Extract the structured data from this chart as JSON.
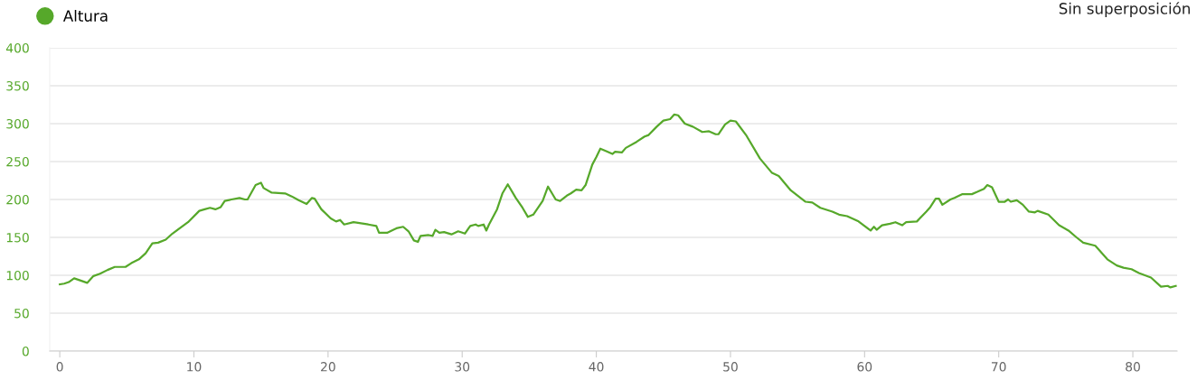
{
  "chart_data": {
    "type": "line",
    "x": [
      0,
      0.33,
      0.67,
      1.07,
      1.56,
      2.04,
      2.51,
      3.0,
      3.56,
      4.1,
      4.9,
      5.33,
      5.9,
      6.4,
      6.9,
      7.33,
      7.9,
      8.4,
      9.56,
      10.4,
      10.8,
      11.2,
      11.6,
      12.0,
      12.3,
      12.8,
      13.4,
      13.8,
      14.0,
      14.6,
      15.0,
      15.2,
      15.8,
      16.8,
      17.3,
      17.8,
      18.4,
      18.8,
      19.0,
      19.5,
      20.2,
      20.6,
      20.9,
      21.2,
      21.9,
      23.0,
      23.6,
      23.8,
      24.4,
      25.1,
      25.6,
      26.0,
      26.4,
      26.7,
      26.9,
      27.5,
      27.8,
      28.0,
      28.3,
      28.65,
      29.2,
      29.7,
      30.2,
      30.6,
      31.0,
      31.2,
      31.6,
      31.8,
      32.0,
      32.6,
      33.0,
      33.4,
      34.0,
      34.5,
      34.9,
      35.3,
      36.0,
      36.4,
      36.97,
      37.3,
      37.8,
      38.1,
      38.5,
      38.9,
      39.2,
      39.7,
      40.0,
      40.3,
      40.7,
      41.2,
      41.4,
      41.9,
      42.2,
      43.0,
      43.6,
      43.9,
      44.5,
      45.0,
      45.5,
      45.8,
      46.1,
      46.6,
      47.2,
      47.9,
      48.4,
      48.9,
      49.1,
      49.6,
      50.0,
      50.4,
      51.2,
      52.2,
      53.1,
      53.6,
      54.5,
      55.6,
      56.1,
      56.7,
      57.6,
      58.1,
      58.7,
      59.55,
      60.45,
      60.7,
      60.9,
      61.3,
      61.9,
      62.3,
      62.8,
      63.1,
      63.9,
      64.6,
      64.9,
      65.3,
      65.55,
      65.8,
      66.4,
      66.7,
      67.3,
      68.0,
      68.4,
      68.9,
      69.15,
      69.5,
      70.0,
      70.45,
      70.7,
      70.9,
      71.35,
      71.8,
      72.25,
      72.7,
      72.9,
      73.7,
      74.5,
      75.2,
      75.8,
      76.3,
      77.2,
      78.1,
      78.8,
      79.3,
      79.9,
      80.45,
      81.35,
      82.1,
      82.6,
      82.8,
      83.2
    ],
    "series": [
      {
        "name": "Altura",
        "color": "#56a82a",
        "values": [
          88,
          89,
          91,
          96,
          93,
          90,
          99,
          102,
          107,
          111,
          111,
          116,
          121,
          129,
          142,
          143,
          147,
          155,
          170,
          185,
          187,
          189,
          187,
          190,
          198,
          200,
          202,
          200,
          200,
          219,
          222,
          215,
          209,
          208,
          204,
          199,
          194,
          202,
          201,
          187,
          175,
          171,
          173,
          167,
          170,
          167,
          165,
          156,
          156,
          162,
          164,
          158,
          146,
          144,
          152,
          153,
          152,
          160,
          156,
          157,
          154,
          158,
          155,
          165,
          167,
          165,
          167,
          159,
          167,
          187,
          208,
          220,
          202,
          189,
          177,
          180,
          198,
          217,
          200,
          198,
          205,
          208,
          213,
          212,
          219,
          246,
          256,
          267,
          264,
          260,
          263,
          262,
          268,
          276,
          283,
          285,
          296,
          304,
          306,
          312,
          311,
          300,
          296,
          289,
          290,
          286,
          286,
          299,
          304,
          303,
          284,
          254,
          235,
          231,
          212,
          197,
          196,
          189,
          184,
          180,
          178,
          171,
          159,
          164,
          160,
          166,
          168,
          170,
          166,
          170,
          171,
          184,
          190,
          201,
          201,
          193,
          200,
          202,
          207,
          207,
          210,
          214,
          219,
          216,
          197,
          197,
          200,
          197,
          199,
          193,
          184,
          183,
          185,
          180,
          166,
          159,
          150,
          143,
          139,
          121,
          113,
          110,
          108,
          103,
          97,
          85,
          86,
          84,
          86
        ]
      }
    ],
    "xlim": [
      -0.75,
      83.3
    ],
    "ylim": [
      0,
      400
    ],
    "xticks": [
      0,
      10,
      20,
      30,
      40,
      50,
      60,
      70,
      80
    ],
    "yticks": [
      0,
      50,
      100,
      150,
      200,
      250,
      300,
      350,
      400
    ],
    "grid": "y",
    "legend": "top left",
    "marker": "none",
    "line_style": "solid",
    "annotations": [
      "Sin superposición"
    ]
  }
}
